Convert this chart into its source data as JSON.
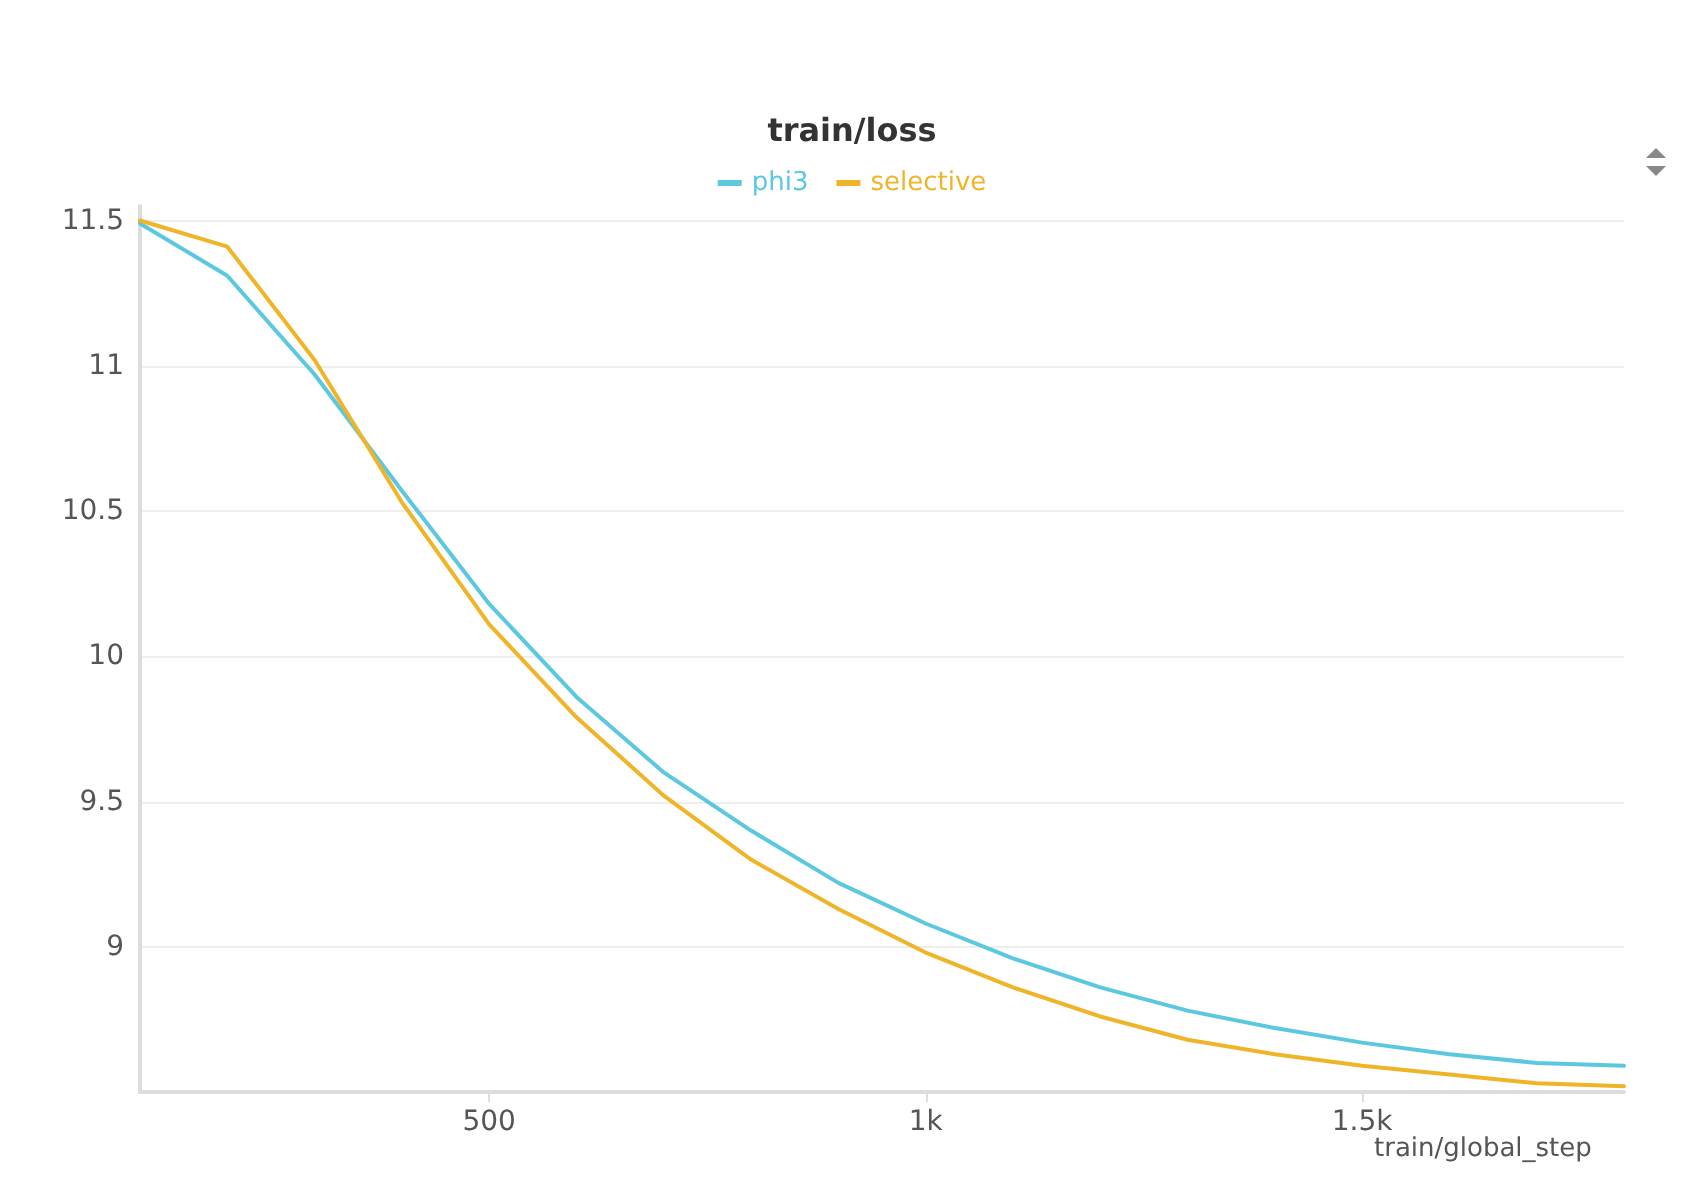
{
  "chart_data": {
    "type": "line",
    "title": "train/loss",
    "xlabel": "train/global_step",
    "x": [
      100,
      200,
      300,
      400,
      500,
      600,
      700,
      800,
      900,
      1000,
      1100,
      1200,
      1300,
      1400,
      1500,
      1600,
      1700,
      1800
    ],
    "series": [
      {
        "name": "phi3",
        "color": "#5bc8e0",
        "values": [
          11.49,
          11.31,
          10.97,
          10.57,
          10.18,
          9.86,
          9.6,
          9.4,
          9.22,
          9.08,
          8.96,
          8.86,
          8.78,
          8.72,
          8.67,
          8.63,
          8.6,
          8.59
        ]
      },
      {
        "name": "selective",
        "color": "#f0b429",
        "values": [
          11.5,
          11.41,
          11.02,
          10.53,
          10.11,
          9.79,
          9.52,
          9.3,
          9.13,
          8.98,
          8.86,
          8.76,
          8.68,
          8.63,
          8.59,
          8.56,
          8.53,
          8.52
        ]
      }
    ],
    "xlim": [
      100,
      1800
    ],
    "xticks": [
      500,
      {
        "value": 1000,
        "label": "1k"
      },
      {
        "value": 1500,
        "label": "1.5k"
      }
    ],
    "ylim": [
      8.5,
      11.55
    ],
    "yticks": [
      9,
      9.5,
      10,
      10.5,
      11,
      11.5
    ],
    "grid": "y",
    "legend": "top",
    "marker": "none",
    "line_style": "solid"
  }
}
